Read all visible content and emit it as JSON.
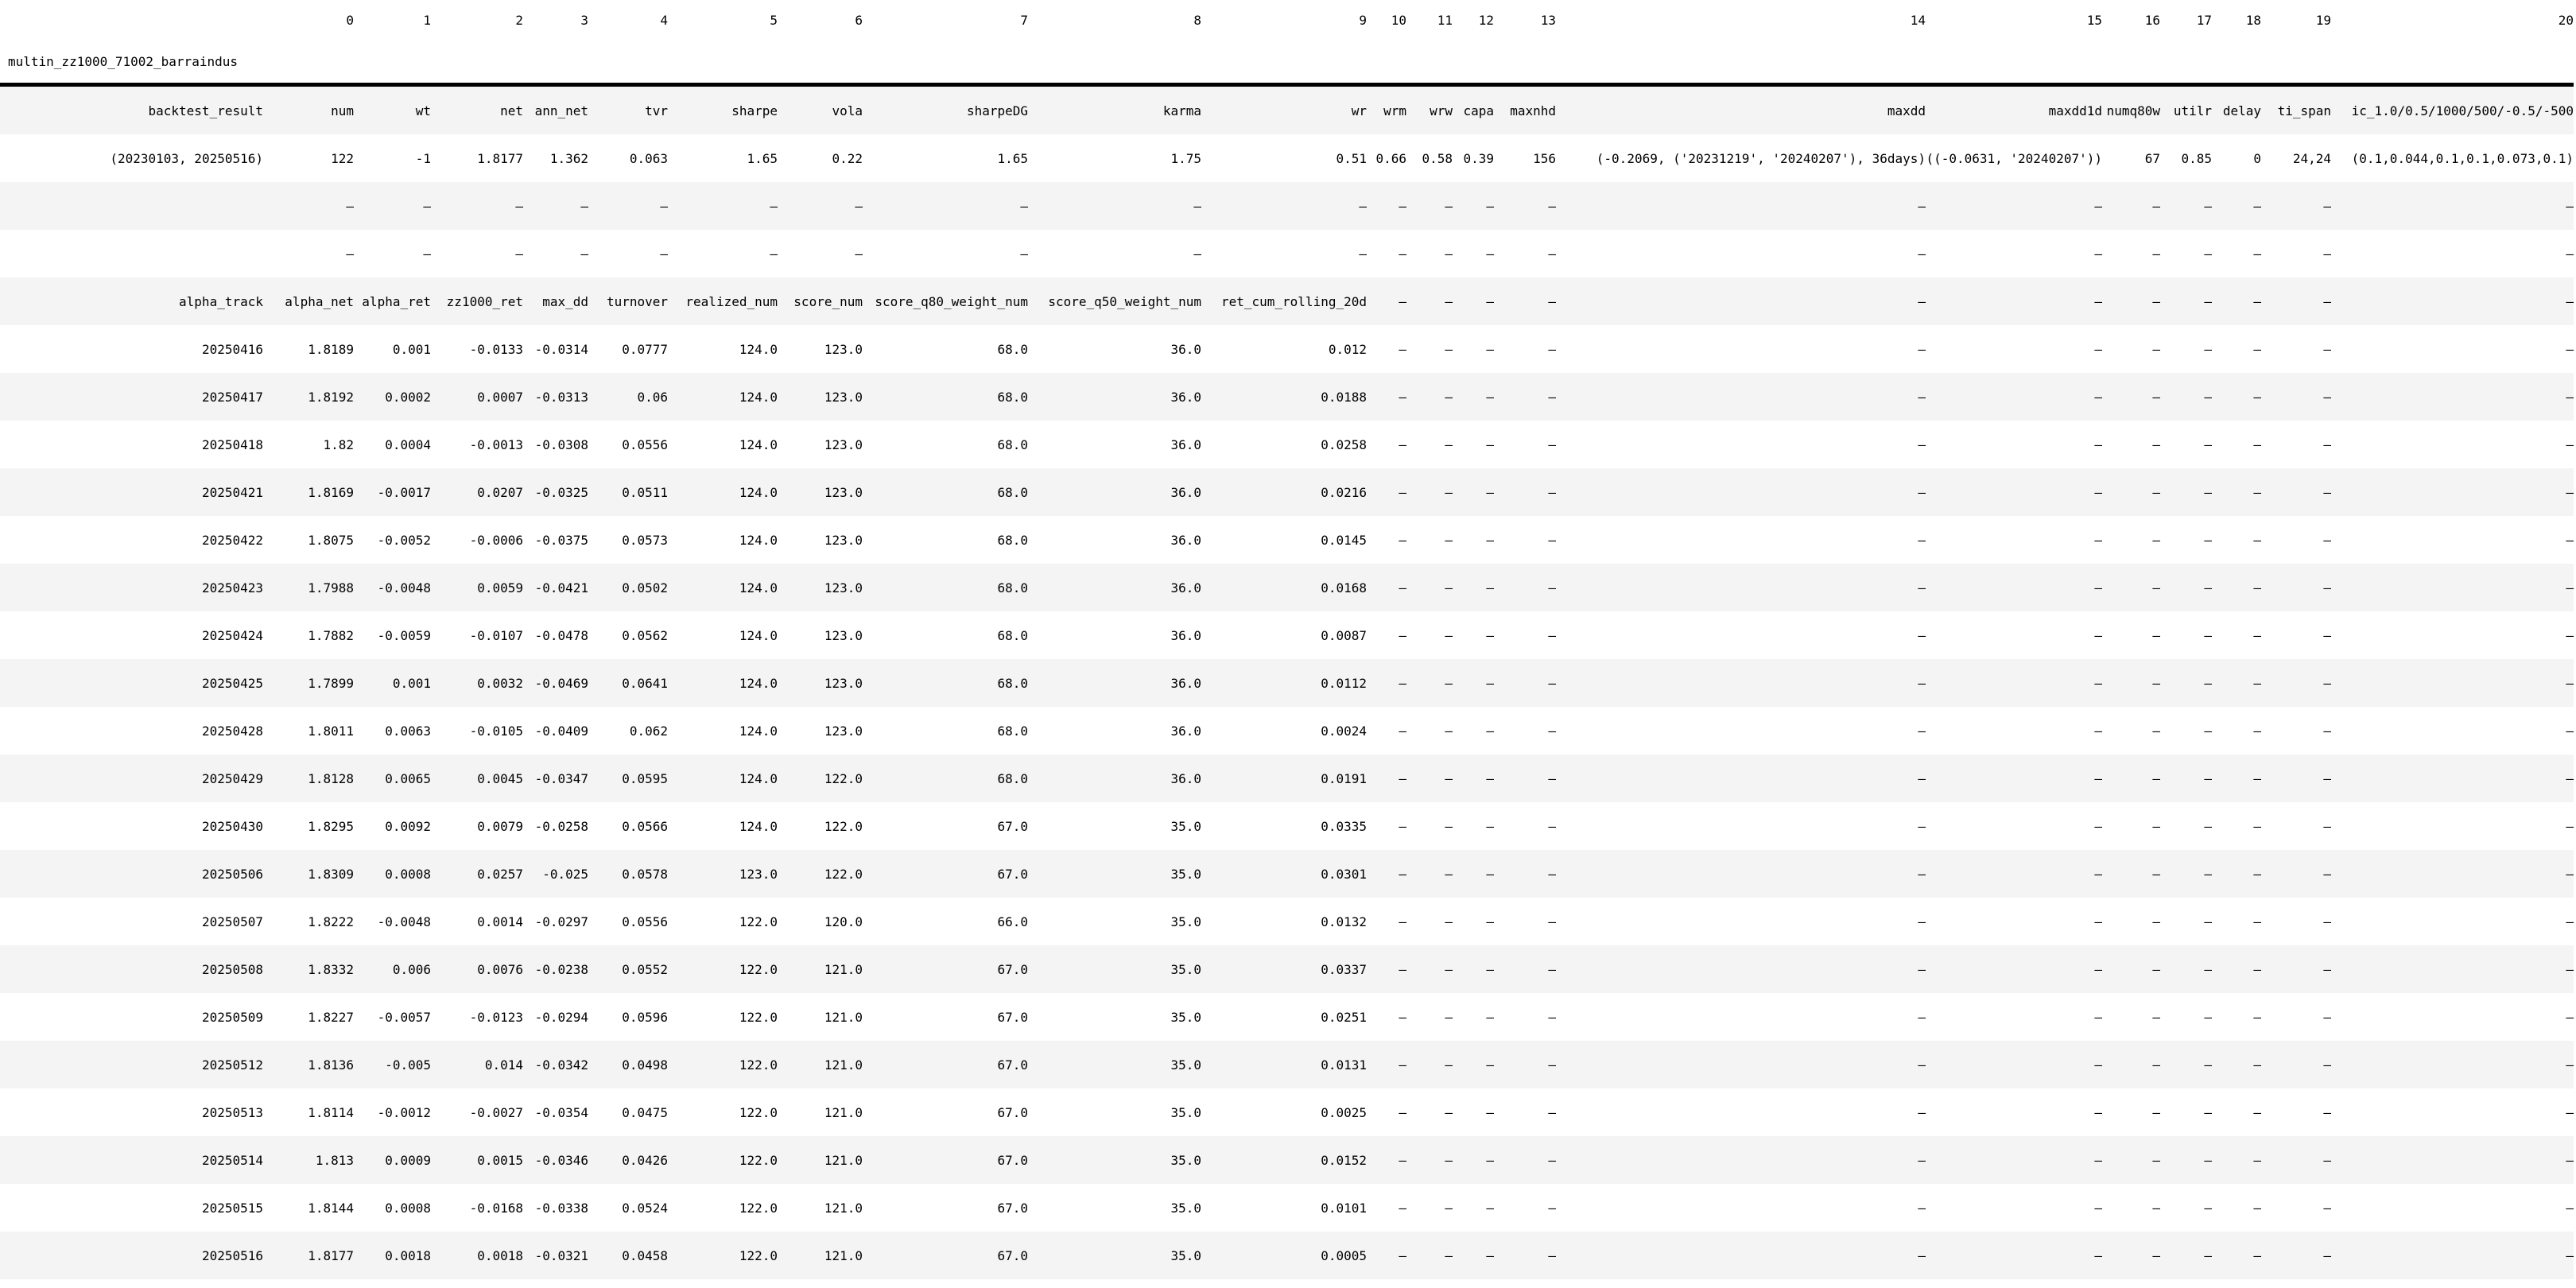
{
  "title": "multin_zz1000_71002_barraindus",
  "column_indices": [
    "",
    "0",
    "1",
    "2",
    "3",
    "4",
    "5",
    "6",
    "7",
    "8",
    "9",
    "10",
    "11",
    "12",
    "13",
    "14",
    "15",
    "16",
    "17",
    "18",
    "19",
    "20"
  ],
  "colors": {
    "background": "#ffffff",
    "text": "#000000",
    "stripe": "#f4f4f4",
    "border": "#000000"
  },
  "table": {
    "header": [
      "backtest_result",
      "num",
      "wt",
      "net",
      "ann_net",
      "tvr",
      "sharpe",
      "vola",
      "sharpeDG",
      "karma",
      "wr",
      "wrm",
      "wrw",
      "capa",
      "maxnhd",
      "maxdd",
      "maxdd1d",
      "numq80w",
      "utilr",
      "delay",
      "ti_span",
      "ic_1.0/0.5/1000/500/-0.5/-500"
    ],
    "rows": [
      [
        "(20230103, 20250516)",
        "122",
        "-1",
        "1.8177",
        "1.362",
        "0.063",
        "1.65",
        "0.22",
        "1.65",
        "1.75",
        "0.51",
        "0.66",
        "0.58",
        "0.39",
        "156",
        "(-0.2069, ('20231219', '20240207'), 36days)",
        "((-0.0631, '20240207'))",
        "67",
        "0.85",
        "0",
        "24,24",
        "(0.1,0.044,0.1,0.1,0.073,0.1)"
      ],
      [
        "",
        "—",
        "—",
        "—",
        "—",
        "—",
        "—",
        "—",
        "—",
        "—",
        "—",
        "—",
        "—",
        "—",
        "—",
        "—",
        "—",
        "—",
        "—",
        "—",
        "—",
        "—"
      ],
      [
        "",
        "—",
        "—",
        "—",
        "—",
        "—",
        "—",
        "—",
        "—",
        "—",
        "—",
        "—",
        "—",
        "—",
        "—",
        "—",
        "—",
        "—",
        "—",
        "—",
        "—",
        "—"
      ],
      [
        "alpha_track",
        "alpha_net",
        "alpha_ret",
        "zz1000_ret",
        "max_dd",
        "turnover",
        "realized_num",
        "score_num",
        "score_q80_weight_num",
        "score_q50_weight_num",
        "ret_cum_rolling_20d",
        "—",
        "—",
        "—",
        "—",
        "—",
        "—",
        "—",
        "—",
        "—",
        "—",
        "—"
      ],
      [
        "20250416",
        "1.8189",
        "0.001",
        "-0.0133",
        "-0.0314",
        "0.0777",
        "124.0",
        "123.0",
        "68.0",
        "36.0",
        "0.012",
        "—",
        "—",
        "—",
        "—",
        "—",
        "—",
        "—",
        "—",
        "—",
        "—",
        "—"
      ],
      [
        "20250417",
        "1.8192",
        "0.0002",
        "0.0007",
        "-0.0313",
        "0.06",
        "124.0",
        "123.0",
        "68.0",
        "36.0",
        "0.0188",
        "—",
        "—",
        "—",
        "—",
        "—",
        "—",
        "—",
        "—",
        "—",
        "—",
        "—"
      ],
      [
        "20250418",
        "1.82",
        "0.0004",
        "-0.0013",
        "-0.0308",
        "0.0556",
        "124.0",
        "123.0",
        "68.0",
        "36.0",
        "0.0258",
        "—",
        "—",
        "—",
        "—",
        "—",
        "—",
        "—",
        "—",
        "—",
        "—",
        "—"
      ],
      [
        "20250421",
        "1.8169",
        "-0.0017",
        "0.0207",
        "-0.0325",
        "0.0511",
        "124.0",
        "123.0",
        "68.0",
        "36.0",
        "0.0216",
        "—",
        "—",
        "—",
        "—",
        "—",
        "—",
        "—",
        "—",
        "—",
        "—",
        "—"
      ],
      [
        "20250422",
        "1.8075",
        "-0.0052",
        "-0.0006",
        "-0.0375",
        "0.0573",
        "124.0",
        "123.0",
        "68.0",
        "36.0",
        "0.0145",
        "—",
        "—",
        "—",
        "—",
        "—",
        "—",
        "—",
        "—",
        "—",
        "—",
        "—"
      ],
      [
        "20250423",
        "1.7988",
        "-0.0048",
        "0.0059",
        "-0.0421",
        "0.0502",
        "124.0",
        "123.0",
        "68.0",
        "36.0",
        "0.0168",
        "—",
        "—",
        "—",
        "—",
        "—",
        "—",
        "—",
        "—",
        "—",
        "—",
        "—"
      ],
      [
        "20250424",
        "1.7882",
        "-0.0059",
        "-0.0107",
        "-0.0478",
        "0.0562",
        "124.0",
        "123.0",
        "68.0",
        "36.0",
        "0.0087",
        "—",
        "—",
        "—",
        "—",
        "—",
        "—",
        "—",
        "—",
        "—",
        "—",
        "—"
      ],
      [
        "20250425",
        "1.7899",
        "0.001",
        "0.0032",
        "-0.0469",
        "0.0641",
        "124.0",
        "123.0",
        "68.0",
        "36.0",
        "0.0112",
        "—",
        "—",
        "—",
        "—",
        "—",
        "—",
        "—",
        "—",
        "—",
        "—",
        "—"
      ],
      [
        "20250428",
        "1.8011",
        "0.0063",
        "-0.0105",
        "-0.0409",
        "0.062",
        "124.0",
        "123.0",
        "68.0",
        "36.0",
        "0.0024",
        "—",
        "—",
        "—",
        "—",
        "—",
        "—",
        "—",
        "—",
        "—",
        "—",
        "—"
      ],
      [
        "20250429",
        "1.8128",
        "0.0065",
        "0.0045",
        "-0.0347",
        "0.0595",
        "124.0",
        "122.0",
        "68.0",
        "36.0",
        "0.0191",
        "—",
        "—",
        "—",
        "—",
        "—",
        "—",
        "—",
        "—",
        "—",
        "—",
        "—"
      ],
      [
        "20250430",
        "1.8295",
        "0.0092",
        "0.0079",
        "-0.0258",
        "0.0566",
        "124.0",
        "122.0",
        "67.0",
        "35.0",
        "0.0335",
        "—",
        "—",
        "—",
        "—",
        "—",
        "—",
        "—",
        "—",
        "—",
        "—",
        "—"
      ],
      [
        "20250506",
        "1.8309",
        "0.0008",
        "0.0257",
        "-0.025",
        "0.0578",
        "123.0",
        "122.0",
        "67.0",
        "35.0",
        "0.0301",
        "—",
        "—",
        "—",
        "—",
        "—",
        "—",
        "—",
        "—",
        "—",
        "—",
        "—"
      ],
      [
        "20250507",
        "1.8222",
        "-0.0048",
        "0.0014",
        "-0.0297",
        "0.0556",
        "122.0",
        "120.0",
        "66.0",
        "35.0",
        "0.0132",
        "—",
        "—",
        "—",
        "—",
        "—",
        "—",
        "—",
        "—",
        "—",
        "—",
        "—"
      ],
      [
        "20250508",
        "1.8332",
        "0.006",
        "0.0076",
        "-0.0238",
        "0.0552",
        "122.0",
        "121.0",
        "67.0",
        "35.0",
        "0.0337",
        "—",
        "—",
        "—",
        "—",
        "—",
        "—",
        "—",
        "—",
        "—",
        "—",
        "—"
      ],
      [
        "20250509",
        "1.8227",
        "-0.0057",
        "-0.0123",
        "-0.0294",
        "0.0596",
        "122.0",
        "121.0",
        "67.0",
        "35.0",
        "0.0251",
        "—",
        "—",
        "—",
        "—",
        "—",
        "—",
        "—",
        "—",
        "—",
        "—",
        "—"
      ],
      [
        "20250512",
        "1.8136",
        "-0.005",
        "0.014",
        "-0.0342",
        "0.0498",
        "122.0",
        "121.0",
        "67.0",
        "35.0",
        "0.0131",
        "—",
        "—",
        "—",
        "—",
        "—",
        "—",
        "—",
        "—",
        "—",
        "—",
        "—"
      ],
      [
        "20250513",
        "1.8114",
        "-0.0012",
        "-0.0027",
        "-0.0354",
        "0.0475",
        "122.0",
        "121.0",
        "67.0",
        "35.0",
        "0.0025",
        "—",
        "—",
        "—",
        "—",
        "—",
        "—",
        "—",
        "—",
        "—",
        "—",
        "—"
      ],
      [
        "20250514",
        "1.813",
        "0.0009",
        "0.0015",
        "-0.0346",
        "0.0426",
        "122.0",
        "121.0",
        "67.0",
        "35.0",
        "0.0152",
        "—",
        "—",
        "—",
        "—",
        "—",
        "—",
        "—",
        "—",
        "—",
        "—",
        "—"
      ],
      [
        "20250515",
        "1.8144",
        "0.0008",
        "-0.0168",
        "-0.0338",
        "0.0524",
        "122.0",
        "121.0",
        "67.0",
        "35.0",
        "0.0101",
        "—",
        "—",
        "—",
        "—",
        "—",
        "—",
        "—",
        "—",
        "—",
        "—",
        "—"
      ],
      [
        "20250516",
        "1.8177",
        "0.0018",
        "0.0018",
        "-0.0321",
        "0.0458",
        "122.0",
        "121.0",
        "67.0",
        "35.0",
        "0.0005",
        "—",
        "—",
        "—",
        "—",
        "—",
        "—",
        "—",
        "—",
        "—",
        "—",
        "—"
      ]
    ]
  }
}
